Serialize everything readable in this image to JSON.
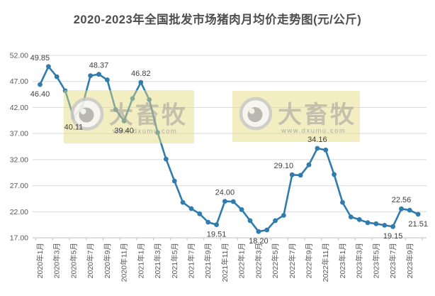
{
  "chart_data": {
    "type": "line",
    "title": "2020-2023年全国批发市场猪肉月均价走势图(元/公斤)",
    "ylabel": "",
    "xlabel": "",
    "unit": "元/公斤",
    "ylim": [
      17,
      52
    ],
    "y_ticks": [
      "52.00",
      "47.00",
      "42.00",
      "37.00",
      "32.00",
      "27.00",
      "22.00",
      "17.00"
    ],
    "x_tick_every": 2,
    "grid": true,
    "legend": "none",
    "x": [
      "2020年1月",
      "2020年2月",
      "2020年3月",
      "2020年4月",
      "2020年5月",
      "2020年6月",
      "2020年7月",
      "2020年8月",
      "2020年9月",
      "2020年10月",
      "2020年11月",
      "2020年12月",
      "2021年1月",
      "2021年2月",
      "2021年3月",
      "2021年4月",
      "2021年5月",
      "2021年6月",
      "2021年7月",
      "2021年8月",
      "2021年9月",
      "2021年10月",
      "2021年11月",
      "2021年12月",
      "2022年1月",
      "2022年2月",
      "2022年3月",
      "2022年4月",
      "2022年5月",
      "2022年6月",
      "2022年7月",
      "2022年8月",
      "2022年9月",
      "2022年10月",
      "2022年11月",
      "2022年12月",
      "2023年1月",
      "2023年2月",
      "2023年3月",
      "2023年4月",
      "2023年5月",
      "2023年6月",
      "2023年7月",
      "2023年8月",
      "2023年9月",
      "2023年10月"
    ],
    "values": [
      46.4,
      49.85,
      47.9,
      45.2,
      40.11,
      42.1,
      48.1,
      48.37,
      47.3,
      41.6,
      39.4,
      43.7,
      46.82,
      43.5,
      37.2,
      32.1,
      27.9,
      23.8,
      22.6,
      21.6,
      20.0,
      19.51,
      24.0,
      23.95,
      22.4,
      20.3,
      18.2,
      18.5,
      20.3,
      21.3,
      29.1,
      29.0,
      31.0,
      34.16,
      33.85,
      29.15,
      23.8,
      21.0,
      20.5,
      19.9,
      19.7,
      19.4,
      19.15,
      22.56,
      22.3,
      21.51
    ],
    "labeled_points": [
      {
        "i": 0,
        "x": "2020年1月",
        "label": "46.40",
        "placement": "below"
      },
      {
        "i": 1,
        "x": "2020年2月",
        "label": "49.85",
        "placement": "above-left"
      },
      {
        "i": 4,
        "x": "2020年5月",
        "label": "40.11",
        "placement": "below"
      },
      {
        "i": 7,
        "x": "2020年8月",
        "label": "48.37",
        "placement": "above"
      },
      {
        "i": 10,
        "x": "2020年11月",
        "label": "39.40",
        "placement": "below"
      },
      {
        "i": 12,
        "x": "2021年1月",
        "label": "46.82",
        "placement": "above"
      },
      {
        "i": 21,
        "x": "2021年10月",
        "label": "19.51",
        "placement": "below"
      },
      {
        "i": 22,
        "x": "2021年11月",
        "label": "24.00",
        "placement": "above"
      },
      {
        "i": 26,
        "x": "2022年3月",
        "label": "18.20",
        "placement": "below"
      },
      {
        "i": 30,
        "x": "2022年7月",
        "label": "29.10",
        "placement": "above-left"
      },
      {
        "i": 33,
        "x": "2022年10月",
        "label": "34.16",
        "placement": "above"
      },
      {
        "i": 42,
        "x": "2023年7月",
        "label": "19.15",
        "placement": "below"
      },
      {
        "i": 43,
        "x": "2023年8月",
        "label": "22.56",
        "placement": "above"
      },
      {
        "i": 45,
        "x": "2023年10月",
        "label": "21.51",
        "placement": "below"
      }
    ],
    "colors": {
      "line": "#2f7cad",
      "grid": "#d9d9d9",
      "axis": "#bfbfbf",
      "title_text": "#4d4d4d",
      "tick_text": "#595959",
      "label_text": "#404040",
      "watermark_bg": "#e5db7f",
      "watermark_text": "#9a9a9a"
    },
    "watermark": {
      "brand": "大畜牧",
      "url": "www.dxumu.com"
    }
  }
}
